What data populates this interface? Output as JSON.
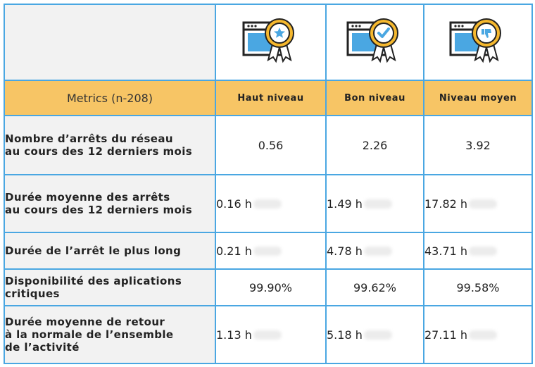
{
  "header": {
    "metrics_label": "Metrics (n-208)",
    "levels": [
      "Haut niveau",
      "Bon niveau",
      "Niveau moyen"
    ],
    "badge_icons": [
      "star-badge-icon",
      "check-badge-icon",
      "thumbs-down-badge-icon"
    ]
  },
  "rows": [
    {
      "label": "Nombre d’arrêts du réseau\nau cours des 12 derniers mois",
      "values": [
        "0.56",
        "2.26",
        "3.92"
      ]
    },
    {
      "label": "Durée moyenne des arrêts\nau cours des 12 derniers mois",
      "values": [
        "0.16 h",
        "1.49 h",
        "17.82 h"
      ]
    },
    {
      "label": "Durée de l’arrêt le plus long",
      "values": [
        "0.21 h",
        "4.78 h",
        "43.71 h"
      ]
    },
    {
      "label": "Disponibilité des aplications\ncritiques",
      "values": [
        "99.90%",
        "99.62%",
        "99.58%"
      ]
    },
    {
      "label": "Durée moyenne de retour\nà la normale de l’ensemble\nde l’activité",
      "values": [
        "1.13 h",
        "5.18 h",
        "27.11 h"
      ]
    }
  ],
  "colors": {
    "border": "#4aa7e2",
    "header_bg": "#f7c565",
    "label_bg": "#f2f2f2",
    "badge_gold": "#f5b82e",
    "screen_blue": "#4aa7e2"
  }
}
